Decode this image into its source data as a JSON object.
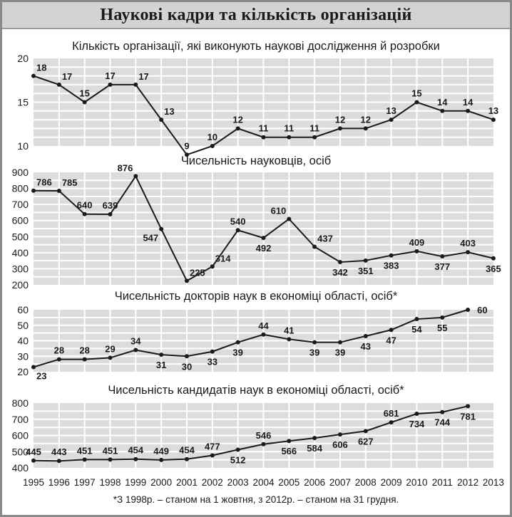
{
  "header": {
    "title": "Наукові кадри та кількість організацій"
  },
  "footnote": "*З 1998р. – станом на 1 жовтня, з 2012р. – станом на 31 грудня.",
  "colors": {
    "header_bg": "#d3d3d3",
    "grid_bg": "#dcdcdc",
    "grid_line": "#ffffff",
    "line": "#1a1a1a",
    "frame": "#8a8a8a"
  },
  "chart_data": [
    {
      "type": "line",
      "title": "Кількість організації, які виконують наукові дослідження й розробки",
      "x": [
        "1995",
        "1996",
        "1997",
        "1998",
        "1999",
        "2000",
        "2001",
        "2002",
        "2003",
        "2004",
        "2005",
        "2006",
        "2007",
        "2008",
        "2009",
        "2010",
        "2011",
        "2012",
        "2013"
      ],
      "values": [
        18,
        17,
        15,
        17,
        17,
        13,
        9,
        10,
        12,
        11,
        11,
        11,
        12,
        12,
        13,
        15,
        14,
        14,
        13
      ],
      "yticks": [
        10,
        15,
        20
      ],
      "ylim": [
        10,
        20
      ],
      "grid": true,
      "label_pos": [
        "ur",
        "ur",
        "above",
        "above",
        "ur",
        "ur",
        "above",
        "above",
        "above",
        "above",
        "above",
        "above",
        "above",
        "above",
        "above",
        "above",
        "above",
        "above",
        "above"
      ]
    },
    {
      "type": "line",
      "title": "Чисельність науковців, осіб",
      "x": [
        "1995",
        "1996",
        "1997",
        "1998",
        "1999",
        "2000",
        "2001",
        "2002",
        "2003",
        "2004",
        "2005",
        "2006",
        "2007",
        "2008",
        "2009",
        "2010",
        "2011",
        "2012",
        "2013"
      ],
      "values": [
        786,
        785,
        640,
        639,
        876,
        547,
        225,
        314,
        540,
        492,
        610,
        437,
        342,
        351,
        383,
        409,
        377,
        403,
        365
      ],
      "yticks": [
        200,
        300,
        400,
        500,
        600,
        700,
        800,
        900
      ],
      "ylim": [
        200,
        900
      ],
      "grid": true,
      "label_pos": [
        "ur",
        "ur",
        "above",
        "above",
        "al",
        "bl",
        "ur",
        "ur",
        "above",
        "below",
        "al",
        "ur",
        "below",
        "below",
        "below",
        "above",
        "below",
        "above",
        "below"
      ]
    },
    {
      "type": "line",
      "title": "Чисельність докторів наук в економіці області, осіб*",
      "x": [
        "1995",
        "1996",
        "1997",
        "1998",
        "1999",
        "2000",
        "2001",
        "2002",
        "2003",
        "2004",
        "2005",
        "2006",
        "2007",
        "2008",
        "2009",
        "2010",
        "2011",
        "2012",
        "2013"
      ],
      "values": [
        23,
        28,
        28,
        29,
        34,
        31,
        30,
        33,
        39,
        44,
        41,
        39,
        39,
        43,
        47,
        54,
        55,
        60,
        null
      ],
      "yticks": [
        20,
        30,
        40,
        50,
        60
      ],
      "ylim": [
        20,
        60
      ],
      "grid": true,
      "label_pos": [
        "br",
        "above",
        "above",
        "above",
        "above",
        "below",
        "below",
        "below",
        "below",
        "above",
        "above",
        "below",
        "below",
        "below",
        "below",
        "below",
        "below",
        "right"
      ]
    },
    {
      "type": "line",
      "title": "Чисельність кандидатів наук в економіці області, осіб*",
      "x": [
        "1995",
        "1996",
        "1997",
        "1998",
        "1999",
        "2000",
        "2001",
        "2002",
        "2003",
        "2004",
        "2005",
        "2006",
        "2007",
        "2008",
        "2009",
        "2010",
        "2011",
        "2012",
        "2013"
      ],
      "values": [
        445,
        443,
        451,
        451,
        454,
        449,
        454,
        477,
        512,
        546,
        566,
        584,
        606,
        627,
        681,
        734,
        744,
        781,
        null
      ],
      "yticks": [
        400,
        500,
        600,
        700,
        800
      ],
      "ylim": [
        400,
        800
      ],
      "grid": true,
      "label_pos": [
        "above",
        "above",
        "above",
        "above",
        "above",
        "above",
        "above",
        "above",
        "below",
        "above",
        "below",
        "below",
        "below",
        "below",
        "above",
        "below",
        "below",
        "below"
      ]
    }
  ],
  "xaxis": {
    "labels": [
      "1995",
      "1996",
      "1997",
      "1998",
      "1999",
      "2000",
      "2001",
      "2002",
      "2003",
      "2004",
      "2005",
      "2006",
      "2007",
      "2008",
      "2009",
      "2010",
      "2011",
      "2012",
      "2013"
    ]
  }
}
